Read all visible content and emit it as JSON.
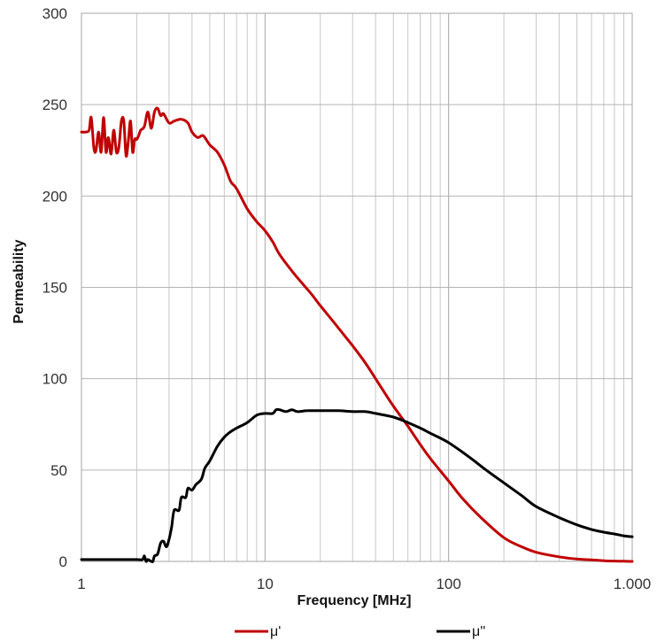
{
  "chart_data": {
    "type": "line",
    "xscale": "log",
    "xlim": [
      1,
      1000
    ],
    "ylim": [
      0,
      300
    ],
    "grid": true,
    "legend_placement": "bottom",
    "xlabel": "Frequency [MHz]",
    "ylabel": "Permeability",
    "x_ticks": [
      "1",
      "10",
      "100",
      "1.000"
    ],
    "y_ticks": [
      "0",
      "50",
      "100",
      "150",
      "200",
      "250",
      "300"
    ],
    "series": [
      {
        "name": "μ'",
        "color": "#c00000",
        "x": [
          1.0,
          1.05,
          1.1,
          1.13,
          1.17,
          1.2,
          1.24,
          1.28,
          1.32,
          1.36,
          1.4,
          1.45,
          1.5,
          1.55,
          1.6,
          1.65,
          1.7,
          1.75,
          1.8,
          1.85,
          1.9,
          1.95,
          2.0,
          2.05,
          2.1,
          2.2,
          2.3,
          2.4,
          2.5,
          2.6,
          2.7,
          2.8,
          3.0,
          3.2,
          3.5,
          3.8,
          4.0,
          4.3,
          4.6,
          5.0,
          5.5,
          6.0,
          6.5,
          7.0,
          8.0,
          9.0,
          10,
          11,
          12,
          14,
          16,
          18,
          20,
          25,
          30,
          35,
          40,
          45,
          50,
          60,
          70,
          80,
          100,
          120,
          150,
          200,
          250,
          300,
          400,
          500,
          600,
          700,
          800,
          900,
          1000
        ],
        "values": [
          235,
          235,
          236,
          243,
          226,
          225,
          235,
          224,
          243,
          224,
          232,
          223,
          236,
          224,
          227,
          241,
          241,
          222,
          230,
          241,
          224,
          231,
          231,
          233,
          236,
          238,
          246,
          237,
          246,
          248,
          244,
          245,
          240,
          241,
          242,
          240,
          235,
          232,
          233,
          228,
          224,
          217,
          208,
          204,
          193,
          186,
          181,
          175,
          168,
          159,
          152,
          146,
          140,
          128,
          118,
          109,
          100,
          92,
          85,
          74,
          64,
          56,
          44,
          34,
          24,
          13,
          8,
          5,
          2.5,
          1.3,
          0.8,
          0.4,
          0.2,
          0.1,
          0
        ],
        "line_width": 3
      },
      {
        "name": "μ''",
        "color": "#000000",
        "x": [
          1.0,
          1.5,
          2.0,
          2.15,
          2.2,
          2.25,
          2.3,
          2.4,
          2.45,
          2.5,
          2.6,
          2.7,
          2.8,
          2.9,
          3.0,
          3.1,
          3.2,
          3.4,
          3.5,
          3.7,
          3.8,
          4.0,
          4.2,
          4.5,
          4.7,
          5.0,
          5.5,
          6.0,
          6.5,
          7.0,
          8.0,
          9.0,
          10,
          11,
          11.5,
          12,
          13,
          14,
          15,
          17,
          20,
          25,
          30,
          35,
          40,
          50,
          60,
          70,
          80,
          100,
          130,
          160,
          200,
          250,
          300,
          400,
          500,
          600,
          700,
          800,
          900,
          1000
        ],
        "values": [
          1,
          1,
          1,
          1,
          3,
          0,
          1,
          0,
          0,
          3,
          4,
          10,
          11,
          8,
          12,
          19,
          28,
          28,
          35,
          35,
          40,
          39,
          42,
          45,
          51,
          55,
          63,
          68,
          71,
          73,
          76,
          80,
          81,
          81,
          83,
          83,
          82,
          83,
          82,
          82.5,
          82.5,
          82.5,
          82,
          82,
          81,
          79,
          76,
          73,
          70,
          65,
          57,
          50,
          43,
          36,
          30,
          24,
          20,
          17.5,
          16,
          15,
          14,
          13.5
        ],
        "line_width": 3
      }
    ]
  }
}
